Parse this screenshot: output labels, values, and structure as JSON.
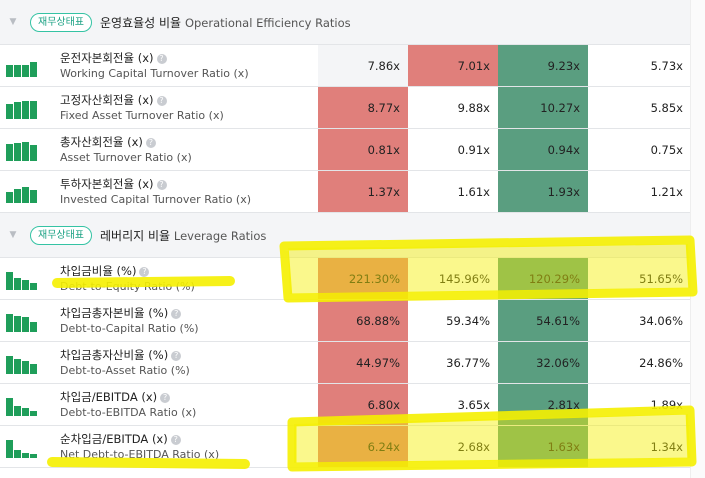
{
  "sections": [
    {
      "badge": "재무상태표",
      "title_ko": "운영효율성 비율",
      "title_en": "Operational Efficiency Ratios",
      "rows": [
        {
          "ko": "운전자본회전율 (x)",
          "en": "Working Capital Turnover Ratio (x)",
          "values": [
            "7.86x",
            "7.01x",
            "9.23x",
            "5.73x"
          ],
          "bars": [
            0.6,
            0.6,
            0.6,
            0.75
          ],
          "colors": [
            "",
            "red",
            "green",
            ""
          ]
        },
        {
          "ko": "고정자산회전율 (x)",
          "en": "Fixed Asset Turnover Ratio (x)",
          "values": [
            "8.77x",
            "9.88x",
            "10.27x",
            "5.85x"
          ],
          "bars": [
            0.75,
            0.85,
            0.9,
            0.9
          ],
          "colors": [
            "red",
            "",
            "green",
            ""
          ]
        },
        {
          "ko": "총자산회전율 (x)",
          "en": "Asset Turnover Ratio (x)",
          "values": [
            "0.81x",
            "0.91x",
            "0.94x",
            "0.75x"
          ],
          "bars": [
            0.85,
            0.9,
            0.95,
            0.8
          ],
          "colors": [
            "red",
            "",
            "green",
            ""
          ]
        },
        {
          "ko": "투하자본회전율 (x)",
          "en": "Invested Capital Turnover Ratio (x)",
          "values": [
            "1.37x",
            "1.61x",
            "1.93x",
            "1.21x"
          ],
          "bars": [
            0.55,
            0.7,
            0.8,
            0.65
          ],
          "colors": [
            "red",
            "",
            "green",
            ""
          ]
        }
      ]
    },
    {
      "badge": "재무상태표",
      "title_ko": "레버리지 비율",
      "title_en": "Leverage Ratios",
      "rows": [
        {
          "ko": "차입금비율 (%)",
          "en": "Debt-to-Equity Ratio (%)",
          "values": [
            "221.30%",
            "145.96%",
            "120.29%",
            "51.65%"
          ],
          "bars": [
            0.9,
            0.6,
            0.5,
            0.35
          ],
          "colors": [
            "red",
            "",
            "green",
            ""
          ]
        },
        {
          "ko": "차입금총자본비율 (%)",
          "en": "Debt-to-Capital Ratio (%)",
          "values": [
            "68.88%",
            "59.34%",
            "54.61%",
            "34.06%"
          ],
          "bars": [
            0.9,
            0.8,
            0.75,
            0.5
          ],
          "colors": [
            "red",
            "",
            "green",
            ""
          ]
        },
        {
          "ko": "차입금총자산비율 (%)",
          "en": "Debt-to-Asset Ratio (%)",
          "values": [
            "44.97%",
            "36.77%",
            "32.06%",
            "24.86%"
          ],
          "bars": [
            0.9,
            0.75,
            0.65,
            0.5
          ],
          "colors": [
            "red",
            "",
            "green",
            ""
          ]
        },
        {
          "ko": "차입금/EBITDA (x)",
          "en": "Debt-to-EBITDA Ratio (x)",
          "values": [
            "6.80x",
            "3.65x",
            "2.81x",
            "1.89x"
          ],
          "bars": [
            0.9,
            0.5,
            0.4,
            0.25
          ],
          "colors": [
            "red",
            "",
            "green",
            ""
          ]
        },
        {
          "ko": "순차입금/EBITDA (x)",
          "en": "Net Debt-to-EBITDA Ratio (x)",
          "values": [
            "6.24x",
            "2.68x",
            "1.63x",
            "1.34x"
          ],
          "bars": [
            0.9,
            0.4,
            0.25,
            0.2
          ],
          "colors": [
            "red",
            "",
            "green",
            ""
          ]
        }
      ]
    }
  ],
  "help_glyph": "?",
  "collapse_icon": "caret-down-icon",
  "colors": {
    "accent": "#35c3a4",
    "bar": "#1f9e5a",
    "high": "#e07f7b",
    "low": "#5a9e80",
    "highlight": "#f5f000"
  }
}
